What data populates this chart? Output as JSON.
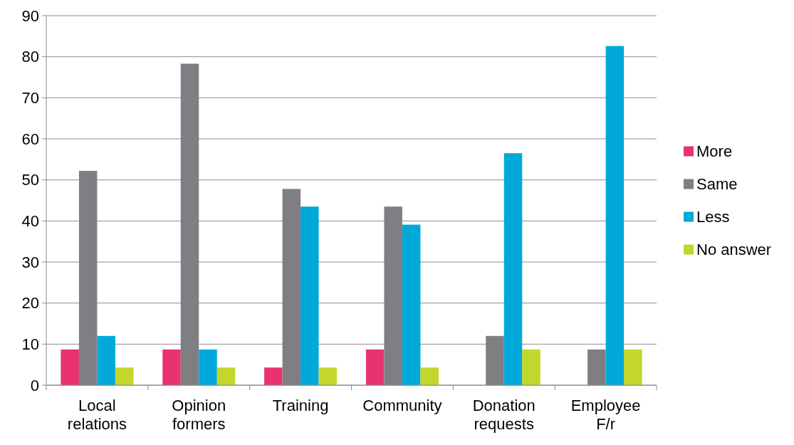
{
  "chart_data": {
    "type": "bar",
    "categories": [
      "Local relations",
      "Opinion formers",
      "Training",
      "Community",
      "Donation requests",
      "Employee F/r"
    ],
    "series": [
      {
        "name": "More",
        "color": "#e8336f",
        "values": [
          8.7,
          8.7,
          4.3,
          8.7,
          0,
          0
        ]
      },
      {
        "name": "Same",
        "color": "#7f7f83",
        "values": [
          52.2,
          78.3,
          47.8,
          43.5,
          12,
          8.7
        ]
      },
      {
        "name": "Less",
        "color": "#00a9d9",
        "values": [
          12,
          8.7,
          43.5,
          39.1,
          56.5,
          82.6
        ]
      },
      {
        "name": "No answer",
        "color": "#c3d62b",
        "values": [
          4.3,
          4.3,
          4.3,
          4.3,
          8.7,
          8.7
        ]
      }
    ],
    "ylim": [
      0,
      90
    ],
    "yticks": [
      0,
      10,
      20,
      30,
      40,
      50,
      60,
      70,
      80,
      90
    ],
    "grid": "y",
    "legend": "right"
  }
}
